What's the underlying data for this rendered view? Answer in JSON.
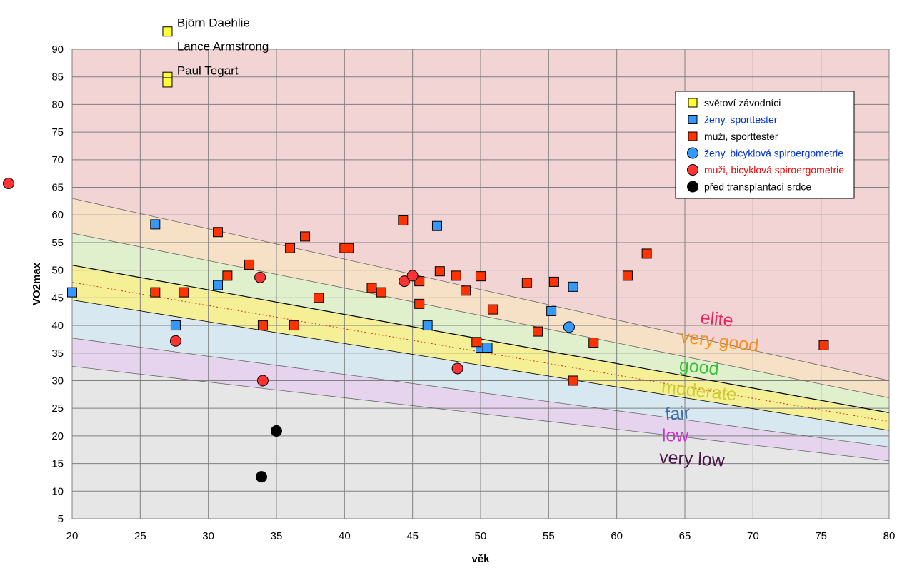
{
  "chart_data": {
    "type": "scatter",
    "title": "",
    "xlabel": "věk",
    "ylabel": "VO2max",
    "xlim": [
      20,
      80
    ],
    "ylim": [
      5,
      90
    ],
    "xticks": [
      20,
      25,
      30,
      35,
      40,
      45,
      50,
      55,
      60,
      65,
      70,
      75,
      80
    ],
    "yticks": [
      5,
      10,
      15,
      20,
      25,
      30,
      35,
      40,
      45,
      50,
      55,
      60,
      65,
      70,
      75,
      80,
      85,
      90
    ],
    "grid": true,
    "background_color": "#f2d4d4",
    "zones": [
      {
        "name": "elite",
        "fill": "#f2d4d4",
        "upper_at_20": null,
        "upper_at_80": null
      },
      {
        "name": "very good",
        "fill": "#f6e1c6",
        "upper_at_20": 63,
        "upper_at_80": 30
      },
      {
        "name": "good",
        "fill": "#e0efcc",
        "upper_at_20": 56.7,
        "upper_at_80": 26.9
      },
      {
        "name": "moderate",
        "fill": "#f5f096",
        "upper_at_20": 50.9,
        "upper_at_80": 24.2
      },
      {
        "name": "fair",
        "fill": "#d8e8f0",
        "upper_at_20": 44.6,
        "upper_at_80": 21
      },
      {
        "name": "low",
        "fill": "#e6d4ee",
        "upper_at_20": 37.7,
        "upper_at_80": 18
      },
      {
        "name": "very low",
        "fill": "#e6e6e6",
        "upper_at_20": 32.6,
        "upper_at_80": 15.5
      }
    ],
    "zone_labels": [
      {
        "text": "elite",
        "color": "#e8245a",
        "x": 67.3,
        "y": 40.1,
        "angle": 6
      },
      {
        "text": "very good",
        "color": "#f0901e",
        "x": 67.5,
        "y": 36.1,
        "angle": 7
      },
      {
        "text": "good",
        "color": "#33c033",
        "x": 66,
        "y": 31.4,
        "angle": 6
      },
      {
        "text": "moderate",
        "color": "#cccc33",
        "x": 66,
        "y": 27.1,
        "angle": 6
      },
      {
        "text": "fair",
        "color": "#3b6fb0",
        "x": 64.5,
        "y": 23,
        "angle": -5
      },
      {
        "text": "low",
        "color": "#cc33cc",
        "x": 64.3,
        "y": 19,
        "angle": 0
      },
      {
        "text": "very low",
        "color": "#4a1447",
        "x": 65.5,
        "y": 14.8,
        "angle": 3
      }
    ],
    "reference_lines": [
      {
        "name": "mean",
        "style": "dotted",
        "color": "#dd2222",
        "y_at_20": 47.8,
        "y_at_80": 22.6
      }
    ],
    "series": [
      {
        "name": "světoví závodníci",
        "marker": "square",
        "color": "#ffff33",
        "text_color": "#000000",
        "points": [
          {
            "x": 27,
            "y": 93.2
          },
          {
            "x": 27,
            "y": 85
          },
          {
            "x": 27,
            "y": 84
          }
        ]
      },
      {
        "name": "ženy, sporttester",
        "marker": "square",
        "color": "#3399ff",
        "text_color": "#0033cc",
        "points": [
          {
            "x": 20,
            "y": 46
          },
          {
            "x": 26.1,
            "y": 58.3
          },
          {
            "x": 27.6,
            "y": 40
          },
          {
            "x": 30.7,
            "y": 47.3
          },
          {
            "x": 46.1,
            "y": 40
          },
          {
            "x": 46.8,
            "y": 58
          },
          {
            "x": 50,
            "y": 36
          },
          {
            "x": 50.5,
            "y": 36
          },
          {
            "x": 55.2,
            "y": 42.6
          },
          {
            "x": 56.8,
            "y": 47
          }
        ]
      },
      {
        "name": "muži, sporttester",
        "marker": "square",
        "color": "#ff3300",
        "text_color": "#000000",
        "points": [
          {
            "x": 26.1,
            "y": 46
          },
          {
            "x": 28.2,
            "y": 46
          },
          {
            "x": 30.7,
            "y": 56.9
          },
          {
            "x": 31.4,
            "y": 49
          },
          {
            "x": 33,
            "y": 51
          },
          {
            "x": 34,
            "y": 40
          },
          {
            "x": 36,
            "y": 54
          },
          {
            "x": 36.3,
            "y": 40
          },
          {
            "x": 37.1,
            "y": 56.1
          },
          {
            "x": 38.1,
            "y": 45
          },
          {
            "x": 40,
            "y": 54
          },
          {
            "x": 40.3,
            "y": 54
          },
          {
            "x": 42,
            "y": 46.8
          },
          {
            "x": 42.7,
            "y": 46
          },
          {
            "x": 44.3,
            "y": 59
          },
          {
            "x": 45.5,
            "y": 48
          },
          {
            "x": 45.5,
            "y": 43.9
          },
          {
            "x": 47,
            "y": 49.8
          },
          {
            "x": 48.2,
            "y": 49
          },
          {
            "x": 48.9,
            "y": 46.3
          },
          {
            "x": 49.7,
            "y": 37
          },
          {
            "x": 50,
            "y": 48.9
          },
          {
            "x": 50.9,
            "y": 42.9
          },
          {
            "x": 53.4,
            "y": 47.7
          },
          {
            "x": 54.2,
            "y": 38.9
          },
          {
            "x": 55.4,
            "y": 47.9
          },
          {
            "x": 56.8,
            "y": 30
          },
          {
            "x": 58.3,
            "y": 36.9
          },
          {
            "x": 60.8,
            "y": 49
          },
          {
            "x": 62.2,
            "y": 53
          },
          {
            "x": 75.2,
            "y": 36.4
          }
        ]
      },
      {
        "name": "ženy, bicyklová spiroergometrie",
        "marker": "circle",
        "color": "#3399ff",
        "text_color": "#0033cc",
        "points": [
          {
            "x": 56.5,
            "y": 39.7
          }
        ]
      },
      {
        "name": "muži, bicyklová spiroergometrie",
        "marker": "circle",
        "color": "#ff3333",
        "text_color": "#ff0000",
        "points": [
          {
            "x": 27.6,
            "y": 37.2
          },
          {
            "x": 33.8,
            "y": 48.7
          },
          {
            "x": 34,
            "y": 30
          },
          {
            "x": 44.4,
            "y": 48
          },
          {
            "x": 45,
            "y": 49
          },
          {
            "x": 48.3,
            "y": 32.2
          }
        ]
      },
      {
        "name": "před transplantací srdce",
        "marker": "circle",
        "color": "#000000",
        "text_color": "#000000",
        "points": [
          {
            "x": 33.9,
            "y": 12.6
          },
          {
            "x": 35,
            "y": 20.9
          }
        ]
      }
    ],
    "annotations": [
      {
        "text": "Björn Daehlie",
        "x": 27.7,
        "y": 94.1
      },
      {
        "text": "Lance Armstrong",
        "x": 27.7,
        "y": 89.8
      },
      {
        "text": "Paul Tegart",
        "x": 27.7,
        "y": 85.4
      }
    ],
    "legend": {
      "position": "right",
      "entries": [
        "světoví závodníci",
        "ženy, sporttester",
        "muži, sporttester",
        "ženy, bicyklová spiroergometrie",
        "muži, bicyklová spiroergometrie",
        "před transplantací srdce"
      ]
    }
  }
}
